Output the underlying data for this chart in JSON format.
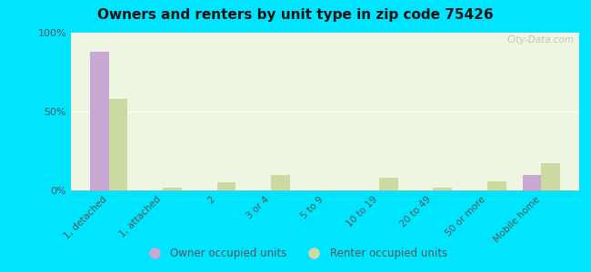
{
  "title": "Owners and renters by unit type in zip code 75426",
  "categories": [
    "1, detached",
    "1, attached",
    "2",
    "3 or 4",
    "5 to 9",
    "10 to 19",
    "20 to 49",
    "50 or more",
    "Mobile home"
  ],
  "owner_values": [
    88,
    0,
    0,
    0,
    0,
    0,
    0,
    0,
    10
  ],
  "renter_values": [
    58,
    2,
    5,
    10,
    0,
    8,
    2,
    6,
    17
  ],
  "owner_color": "#c9a8d4",
  "renter_color": "#ccd9a0",
  "background_color": "#00e5ff",
  "plot_bg_color": "#eef5e0",
  "ylim": [
    0,
    100
  ],
  "yticks": [
    0,
    50,
    100
  ],
  "ytick_labels": [
    "0%",
    "50%",
    "100%"
  ],
  "bar_width": 0.35,
  "legend_labels": [
    "Owner occupied units",
    "Renter occupied units"
  ],
  "watermark": "City-Data.com"
}
